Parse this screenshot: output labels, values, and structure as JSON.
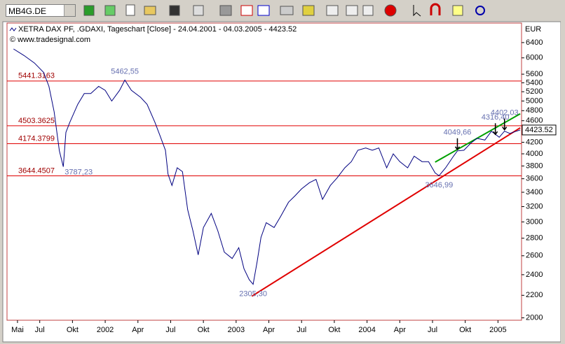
{
  "toolbar": {
    "symbol": "MB4G.DE"
  },
  "chart_data": {
    "type": "line",
    "title": "XETRA DAX PF, .GDAXI, Tageschart [Close] - 24.04.2001 - 04.03.2005 - 4423.52",
    "subtitle": "© www.tradesignal.com",
    "y_axis_label": "EUR",
    "log_scale": true,
    "x": [
      2001.3,
      2001.38,
      2001.46,
      2001.53,
      2001.57,
      2001.61,
      2001.65,
      2001.68,
      2001.7,
      2001.73,
      2001.79,
      2001.84,
      2001.89,
      2001.95,
      2002.0,
      2002.05,
      2002.11,
      2002.15,
      2002.2,
      2002.27,
      2002.32,
      2002.38,
      2002.42,
      2002.46,
      2002.48,
      2002.51,
      2002.55,
      2002.59,
      2002.63,
      2002.67,
      2002.71,
      2002.75,
      2002.81,
      2002.86,
      2002.91,
      2002.97,
      2003.02,
      2003.06,
      2003.1,
      2003.13,
      2003.16,
      2003.19,
      2003.23,
      2003.29,
      2003.34,
      2003.4,
      2003.45,
      2003.5,
      2003.56,
      2003.61,
      2003.66,
      2003.72,
      2003.77,
      2003.83,
      2003.88,
      2003.93,
      2003.99,
      2004.04,
      2004.09,
      2004.15,
      2004.2,
      2004.25,
      2004.31,
      2004.36,
      2004.42,
      2004.47,
      2004.52,
      2004.55,
      2004.6,
      2004.66,
      2004.69,
      2004.74,
      2004.79,
      2004.84,
      2004.9,
      2004.95,
      2005.01,
      2005.05,
      2005.09,
      2005.14,
      2005.17
    ],
    "series": [
      {
        "name": "XETRA DAX PF",
        "color": "#000080",
        "values": [
          6230,
          6060,
          5870,
          5640,
          5320,
          4780,
          4050,
          3787,
          4380,
          4570,
          4930,
          5160,
          5160,
          5320,
          5230,
          5000,
          5230,
          5462,
          5230,
          5080,
          4930,
          4570,
          4310,
          4060,
          3670,
          3500,
          3770,
          3710,
          3160,
          2890,
          2610,
          2930,
          3110,
          2890,
          2640,
          2570,
          2690,
          2460,
          2350,
          2305,
          2530,
          2810,
          2990,
          2930,
          3070,
          3260,
          3350,
          3450,
          3540,
          3590,
          3300,
          3500,
          3610,
          3770,
          3870,
          4060,
          4100,
          4060,
          4100,
          3770,
          4000,
          3870,
          3770,
          3960,
          3870,
          3870,
          3690,
          3647,
          3770,
          3960,
          4050,
          4060,
          4180,
          4270,
          4240,
          4400,
          4290,
          4402,
          4360,
          4400,
          4423.52
        ]
      }
    ],
    "levels": {
      "color": "#e00000",
      "values": [
        5441.3163,
        4503.3625,
        4174.3799,
        3644.4507
      ]
    },
    "trendlines": [
      {
        "color": "#e00000",
        "x": [
          2003.12,
          2005.17
        ],
        "values": [
          2192,
          4464
        ]
      },
      {
        "color": "#00a000",
        "x": [
          2004.52,
          2005.17
        ],
        "values": [
          3862,
          4736
        ]
      }
    ],
    "annotations": [
      {
        "label": "5462,55",
        "value": 5462.55,
        "x": 2002.15,
        "position": "above"
      },
      {
        "label": "3787,23",
        "value": 3787.23,
        "x": 2001.68,
        "position": "right"
      },
      {
        "label": "2305,30",
        "value": 2305.3,
        "x": 2003.13,
        "position": "below"
      },
      {
        "label": "3646,99",
        "value": 3646.99,
        "x": 2004.55,
        "position": "below"
      },
      {
        "label": "4049,66",
        "value": 4049.66,
        "x": 2004.69,
        "position": "arrow"
      },
      {
        "label": "4316,40",
        "value": 4316.4,
        "x": 2004.98,
        "position": "arrow"
      },
      {
        "label": "4402,03",
        "value": 4402.03,
        "x": 2005.05,
        "position": "arrow"
      }
    ],
    "last_value": 4423.52,
    "xlim": [
      2001.25,
      2005.18
    ],
    "ylim": [
      1980,
      6950
    ],
    "yticks": [
      2000,
      2200,
      2400,
      2600,
      2800,
      3000,
      3200,
      3400,
      3600,
      3800,
      4000,
      4200,
      4600,
      4800,
      5000,
      5200,
      5400,
      5600,
      6000,
      6400
    ],
    "xticks": [
      {
        "value": 2001.33,
        "label": "Mai"
      },
      {
        "value": 2001.5,
        "label": "Jul"
      },
      {
        "value": 2001.75,
        "label": "Okt"
      },
      {
        "value": 2002,
        "label": "2002"
      },
      {
        "value": 2002.25,
        "label": "Apr"
      },
      {
        "value": 2002.5,
        "label": "Jul"
      },
      {
        "value": 2002.75,
        "label": "Okt"
      },
      {
        "value": 2003,
        "label": "2003"
      },
      {
        "value": 2003.25,
        "label": "Apr"
      },
      {
        "value": 2003.5,
        "label": "Jul"
      },
      {
        "value": 2003.75,
        "label": "Okt"
      },
      {
        "value": 2004,
        "label": "2004"
      },
      {
        "value": 2004.25,
        "label": "Apr"
      },
      {
        "value": 2004.5,
        "label": "Jul"
      },
      {
        "value": 2004.75,
        "label": "Okt"
      },
      {
        "value": 2005,
        "label": "2005"
      }
    ]
  }
}
